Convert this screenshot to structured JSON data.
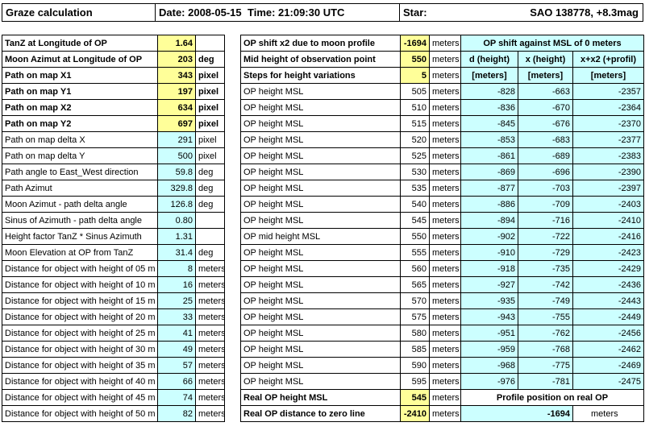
{
  "header": {
    "title": "Graze calculation",
    "date": "Date: 2008-05-15",
    "time": "Time: 21:09:30 UTC",
    "star_label": "Star:",
    "star_value": "SAO 138778, +8.3mag"
  },
  "left": {
    "rows": [
      {
        "label": "TanZ at Longitude of OP",
        "value": "1.64",
        "unit": ""
      },
      {
        "label": "Moon Azimut at Longitude of OP",
        "value": "203",
        "unit": "deg"
      },
      {
        "label": "Path on map X1",
        "value": "343",
        "unit": "pixel"
      },
      {
        "label": "Path on map Y1",
        "value": "197",
        "unit": "pixel"
      },
      {
        "label": "Path on map X2",
        "value": "634",
        "unit": "pixel"
      },
      {
        "label": "Path on map Y2",
        "value": "697",
        "unit": "pixel"
      },
      {
        "label": "Path on map delta X",
        "value": "291",
        "unit": "pixel"
      },
      {
        "label": "Path on map delta Y",
        "value": "500",
        "unit": "pixel"
      },
      {
        "label": "Path angle to East_West direction",
        "value": "59.8",
        "unit": "deg"
      },
      {
        "label": "Path Azimut",
        "value": "329.8",
        "unit": "deg"
      },
      {
        "label": "Moon Azimut - path delta angle",
        "value": "126.8",
        "unit": "deg"
      },
      {
        "label": "Sinus of Azimuth - path delta angle",
        "value": "0.80",
        "unit": ""
      },
      {
        "label": "Height factor TanZ * Sinus Azimuth",
        "value": "1.31",
        "unit": ""
      },
      {
        "label": "Moon Elevation at OP from TanZ",
        "value": "31.4",
        "unit": "deg"
      },
      {
        "label": "Distance for object with height of 05 m",
        "value": "8",
        "unit": "meters"
      },
      {
        "label": "Distance for object with height of 10 m",
        "value": "16",
        "unit": "meters"
      },
      {
        "label": "Distance for object with height of 15 m",
        "value": "25",
        "unit": "meters"
      },
      {
        "label": "Distance for object with height of 20 m",
        "value": "33",
        "unit": "meters"
      },
      {
        "label": "Distance for object with height of 25 m",
        "value": "41",
        "unit": "meters"
      },
      {
        "label": "Distance for object with height of 30 m",
        "value": "49",
        "unit": "meters"
      },
      {
        "label": "Distance for object with height of 35 m",
        "value": "57",
        "unit": "meters"
      },
      {
        "label": "Distance for object with height of 40 m",
        "value": "66",
        "unit": "meters"
      },
      {
        "label": "Distance for object with height of 45 m",
        "value": "74",
        "unit": "meters"
      },
      {
        "label": "Distance for object with height of 50 m",
        "value": "82",
        "unit": "meters"
      }
    ]
  },
  "mid": {
    "top": [
      {
        "label": "OP shift x2 due to moon profile",
        "value": "-1694",
        "unit": "meters"
      },
      {
        "label": "Mid height of observation point",
        "value": "550",
        "unit": "meters"
      },
      {
        "label": "Steps for height variations",
        "value": "5",
        "unit": "meters"
      }
    ],
    "rows": [
      {
        "label": "OP height MSL",
        "value": "505",
        "unit": "meters"
      },
      {
        "label": "OP height MSL",
        "value": "510",
        "unit": "meters"
      },
      {
        "label": "OP height MSL",
        "value": "515",
        "unit": "meters"
      },
      {
        "label": "OP height MSL",
        "value": "520",
        "unit": "meters"
      },
      {
        "label": "OP height MSL",
        "value": "525",
        "unit": "meters"
      },
      {
        "label": "OP height MSL",
        "value": "530",
        "unit": "meters"
      },
      {
        "label": "OP height MSL",
        "value": "535",
        "unit": "meters"
      },
      {
        "label": "OP height MSL",
        "value": "540",
        "unit": "meters"
      },
      {
        "label": "OP height MSL",
        "value": "545",
        "unit": "meters"
      },
      {
        "label": "OP mid height MSL",
        "value": "550",
        "unit": "meters"
      },
      {
        "label": "OP height MSL",
        "value": "555",
        "unit": "meters"
      },
      {
        "label": "OP height MSL",
        "value": "560",
        "unit": "meters"
      },
      {
        "label": "OP height MSL",
        "value": "565",
        "unit": "meters"
      },
      {
        "label": "OP height MSL",
        "value": "570",
        "unit": "meters"
      },
      {
        "label": "OP height MSL",
        "value": "575",
        "unit": "meters"
      },
      {
        "label": "OP height MSL",
        "value": "580",
        "unit": "meters"
      },
      {
        "label": "OP height MSL",
        "value": "585",
        "unit": "meters"
      },
      {
        "label": "OP height MSL",
        "value": "590",
        "unit": "meters"
      },
      {
        "label": "OP height MSL",
        "value": "595",
        "unit": "meters"
      }
    ],
    "bottom": [
      {
        "label": "Real OP height MSL",
        "value": "545",
        "unit": "meters"
      },
      {
        "label": "Real OP distance to zero line",
        "value": "-2410",
        "unit": "meters"
      }
    ]
  },
  "right": {
    "title": "OP shift against MSL of 0 meters",
    "col_heads": [
      "d (height)",
      "x (height)",
      "x+x2 (+profil)"
    ],
    "col_units": [
      "[meters]",
      "[meters]",
      "[meters]"
    ],
    "rows": [
      [
        "-828",
        "-663",
        "-2357"
      ],
      [
        "-836",
        "-670",
        "-2364"
      ],
      [
        "-845",
        "-676",
        "-2370"
      ],
      [
        "-853",
        "-683",
        "-2377"
      ],
      [
        "-861",
        "-689",
        "-2383"
      ],
      [
        "-869",
        "-696",
        "-2390"
      ],
      [
        "-877",
        "-703",
        "-2397"
      ],
      [
        "-886",
        "-709",
        "-2403"
      ],
      [
        "-894",
        "-716",
        "-2410"
      ],
      [
        "-902",
        "-722",
        "-2416"
      ],
      [
        "-910",
        "-729",
        "-2423"
      ],
      [
        "-918",
        "-735",
        "-2429"
      ],
      [
        "-927",
        "-742",
        "-2436"
      ],
      [
        "-935",
        "-749",
        "-2443"
      ],
      [
        "-943",
        "-755",
        "-2449"
      ],
      [
        "-951",
        "-762",
        "-2456"
      ],
      [
        "-959",
        "-768",
        "-2462"
      ],
      [
        "-968",
        "-775",
        "-2469"
      ],
      [
        "-976",
        "-781",
        "-2475"
      ]
    ],
    "profile_title": "Profile position on real OP",
    "profile_value": "-1694",
    "profile_unit": "meters"
  }
}
